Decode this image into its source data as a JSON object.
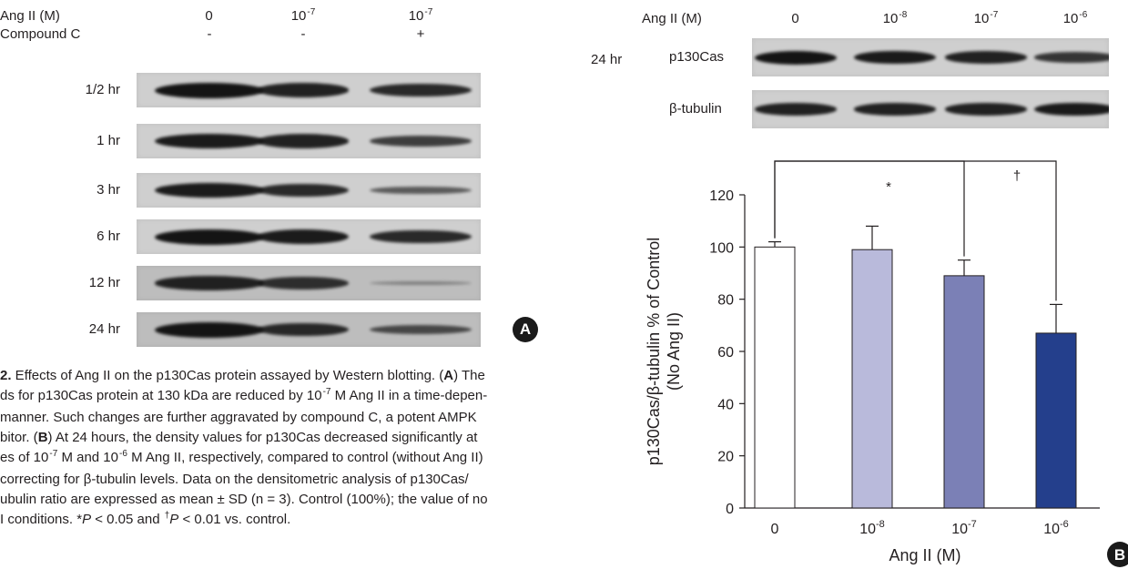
{
  "panel_a": {
    "header_ang_label": "Ang II (M)",
    "header_compound_label": "Compound C",
    "conc_cols": [
      {
        "base": "0",
        "exp": ""
      },
      {
        "base": "10",
        "exp": "-7"
      },
      {
        "base": "10",
        "exp": "-7"
      }
    ],
    "compound_signs": [
      "-",
      "-",
      "+"
    ],
    "time_rows": [
      "1/2 hr",
      "1 hr",
      "3 hr",
      "6 hr",
      "12 hr",
      "24 hr"
    ],
    "band_intensity": [
      [
        1.0,
        0.9,
        0.85
      ],
      [
        0.95,
        0.9,
        0.7
      ],
      [
        0.95,
        0.85,
        0.5
      ],
      [
        1.0,
        0.95,
        0.85
      ],
      [
        0.9,
        0.8,
        0.15
      ],
      [
        1.0,
        0.85,
        0.6
      ]
    ],
    "badge": "A"
  },
  "panel_b_blot": {
    "header_ang_label": "Ang II (M)",
    "conc_cols": [
      {
        "base": "0",
        "exp": ""
      },
      {
        "base": "10",
        "exp": "-8"
      },
      {
        "base": "10",
        "exp": "-7"
      },
      {
        "base": "10",
        "exp": "-6"
      }
    ],
    "time_label": "24 hr",
    "row_labels": [
      "p130Cas",
      "β-tubulin"
    ],
    "band_intensity": [
      [
        1.0,
        0.95,
        0.9,
        0.75
      ],
      [
        0.9,
        0.9,
        0.9,
        0.95
      ]
    ]
  },
  "caption": {
    "bold_lead": "2.",
    "line1_a": " Effects of Ang II on the p130Cas protein assayed by Western blotting. (",
    "line1_b": "A",
    "line1_c": ") The",
    "line2_a": "ds for p130Cas protein at 130 kDa are reduced by 10",
    "line2_sup": "-7",
    "line2_b": " M Ang II in a time-depen-",
    "line3": " manner. Such changes are further aggravated by compound C, a potent AMPK",
    "line4_a": "bitor. (",
    "line4_b": "B",
    "line4_c": ") At 24 hours, the density values for p130Cas decreased significantly at",
    "line5_a": "es of 10",
    "line5_sup1": "-7",
    "line5_b": " M and 10",
    "line5_sup2": "-6",
    "line5_c": " M Ang II, respectively, compared to control (without Ang II)",
    "line6": " correcting for β-tubulin levels. Data on the densitometric analysis of p130Cas/",
    "line7": "ubulin ratio are expressed as mean ± SD (n = 3). Control (100%); the value of no",
    "line8_a": "I conditions. *",
    "line8_b": "P",
    "line8_c": " < 0.05 and ",
    "line8_sup": "†",
    "line8_d": "P",
    "line8_e": " < 0.01 vs. control."
  },
  "chart_data": {
    "type": "bar",
    "categories": [
      "0",
      "10^-8",
      "10^-7",
      "10^-6"
    ],
    "tick_labels": [
      {
        "base": "0",
        "exp": ""
      },
      {
        "base": "10",
        "exp": "-8"
      },
      {
        "base": "10",
        "exp": "-7"
      },
      {
        "base": "10",
        "exp": "-6"
      }
    ],
    "values": [
      100,
      99,
      89,
      67
    ],
    "errors": [
      2,
      9,
      6,
      11
    ],
    "colors": [
      "#ffffff",
      "#b9badb",
      "#7b80b6",
      "#243f8c"
    ],
    "xlabel": "Ang II (M)",
    "ylabel_line1": "p130Cas/β-tubulin % of Control",
    "ylabel_line2": "(No Ang II)",
    "ylim": [
      0,
      120
    ],
    "yticks": [
      0,
      20,
      40,
      60,
      80,
      100,
      120
    ],
    "significance": [
      {
        "from": 0,
        "to": 2,
        "symbol": "*"
      },
      {
        "from": 0,
        "to": 3,
        "symbol": "†"
      }
    ],
    "badge": "B"
  }
}
